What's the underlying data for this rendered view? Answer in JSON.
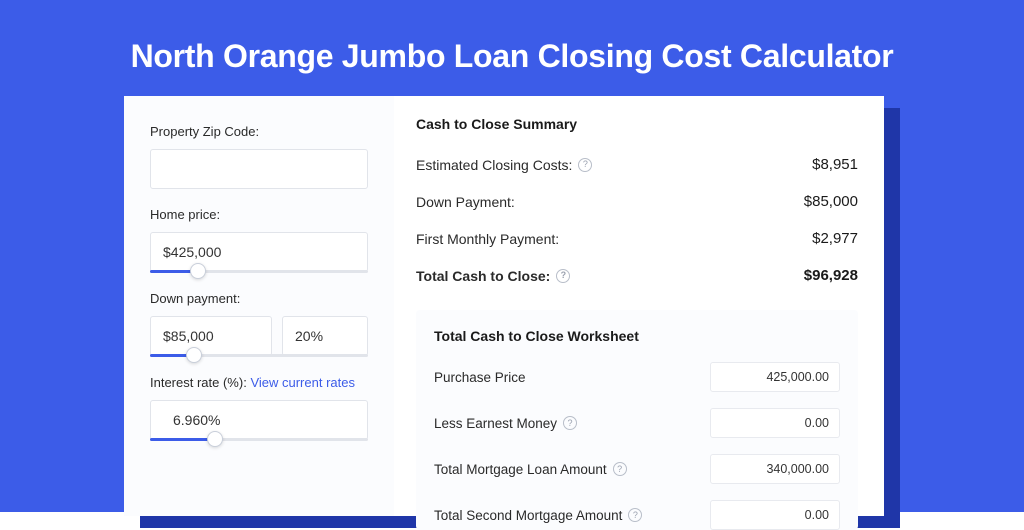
{
  "page": {
    "title": "North Orange Jumbo Loan Closing Cost Calculator",
    "bg_color": "#3c5ce8",
    "shadow_color": "#1f36a8",
    "card_bg": "#ffffff",
    "left_bg": "#fbfcfe"
  },
  "inputs": {
    "zip": {
      "label": "Property Zip Code:",
      "value": ""
    },
    "home_price": {
      "label": "Home price:",
      "value": "$425,000",
      "slider_percent": 22
    },
    "down_payment": {
      "label": "Down payment:",
      "value": "$85,000",
      "percent_value": "20%",
      "slider_percent": 20
    },
    "interest_rate": {
      "label": "Interest rate (%):",
      "link_text": "View current rates",
      "value": "6.960%",
      "slider_percent": 30
    }
  },
  "summary": {
    "title": "Cash to Close Summary",
    "rows": [
      {
        "label": "Estimated Closing Costs:",
        "help": true,
        "value": "$8,951",
        "bold": false
      },
      {
        "label": "Down Payment:",
        "help": false,
        "value": "$85,000",
        "bold": false
      },
      {
        "label": "First Monthly Payment:",
        "help": false,
        "value": "$2,977",
        "bold": false
      },
      {
        "label": "Total Cash to Close:",
        "help": true,
        "value": "$96,928",
        "bold": true
      }
    ]
  },
  "worksheet": {
    "title": "Total Cash to Close Worksheet",
    "rows": [
      {
        "label": "Purchase Price",
        "help": false,
        "value": "425,000.00"
      },
      {
        "label": "Less Earnest Money",
        "help": true,
        "value": "0.00"
      },
      {
        "label": "Total Mortgage Loan Amount",
        "help": true,
        "value": "340,000.00"
      },
      {
        "label": "Total Second Mortgage Amount",
        "help": true,
        "value": "0.00"
      }
    ]
  }
}
